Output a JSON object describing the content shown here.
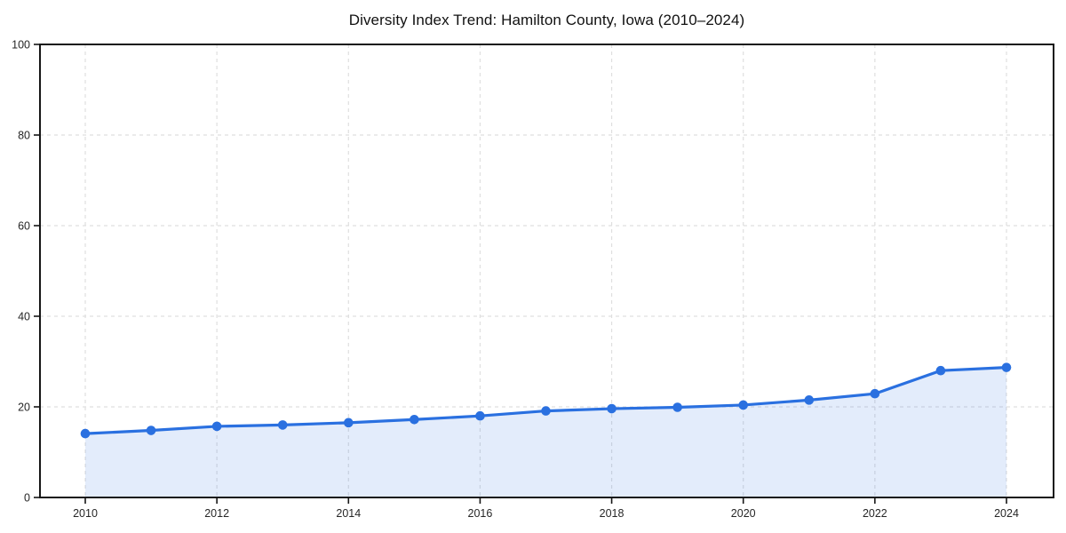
{
  "figure": {
    "background": "#ffffff"
  },
  "chart_data": {
    "type": "line",
    "title": "Diversity Index Trend: Hamilton County, Iowa (2010–2024)",
    "x": [
      2010,
      2011,
      2012,
      2013,
      2014,
      2015,
      2016,
      2017,
      2018,
      2019,
      2020,
      2021,
      2022,
      2023,
      2024
    ],
    "series": [
      {
        "name": "Diversity Index",
        "values": [
          14.1,
          14.8,
          15.7,
          16.0,
          16.5,
          17.2,
          18.0,
          19.1,
          19.6,
          19.9,
          20.4,
          21.5,
          22.9,
          28.0,
          28.7
        ]
      }
    ],
    "xlabel": "",
    "ylabel": "",
    "ylim": [
      0,
      100
    ],
    "yticks": [
      0,
      20,
      40,
      60,
      80,
      100
    ],
    "ytick_labels": [
      "0",
      "20",
      "40",
      "60",
      "80",
      "100"
    ],
    "xticks": [
      2010,
      2012,
      2014,
      2016,
      2018,
      2020,
      2022,
      2024
    ],
    "xtick_labels": [
      "2010",
      "2012",
      "2014",
      "2016",
      "2018",
      "2020",
      "2022",
      "2024"
    ],
    "grid": "dashed",
    "legend_position": "none",
    "area_fill": true,
    "marker": "circle",
    "colors": {
      "line": "#2a70e0",
      "marker": "#2a70e0",
      "fill": "rgba(42, 112, 224, 0.13)",
      "gridline": "#dfdfdf",
      "axis": "#161616",
      "tick_label": "#262626",
      "title": "#111111"
    }
  }
}
